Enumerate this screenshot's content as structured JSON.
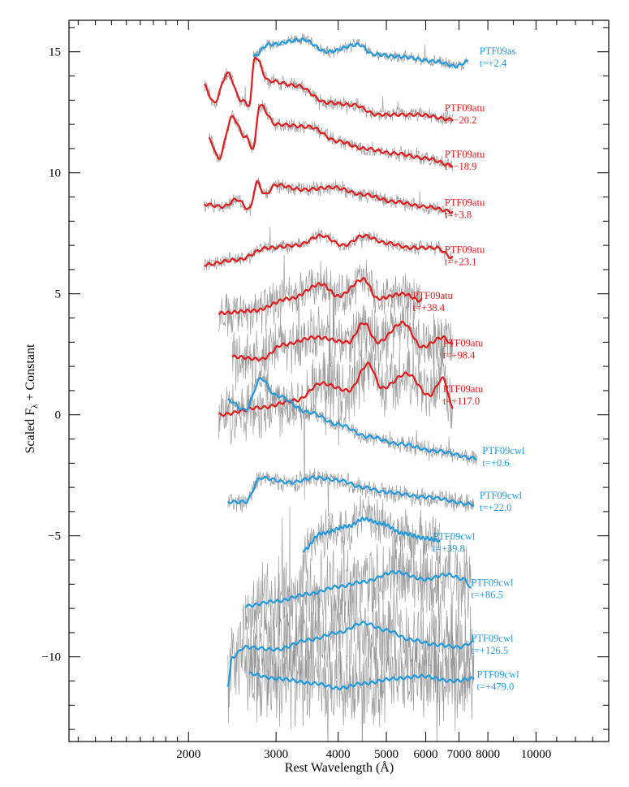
{
  "chart_data": {
    "type": "line",
    "title": "",
    "xlabel": "Rest Wavelength (Å)",
    "ylabel_main": "Scaled F",
    "ylabel_sub": "λ",
    "ylabel_tail": " + Constant",
    "xscale": "log",
    "xlim": [
      1150,
      14000
    ],
    "ylim": [
      -13.5,
      16.3
    ],
    "x_major_ticks": [
      2000,
      3000,
      4000,
      5000,
      6000,
      7000,
      8000,
      10000
    ],
    "x_tick_labels": [
      "2000",
      "3000",
      "4000",
      "5000",
      "6000",
      "7000",
      "8000",
      "10000"
    ],
    "y_major_ticks": [
      15,
      10,
      5,
      0,
      -5,
      -10
    ],
    "y_tick_labels": [
      "15",
      "10",
      "5",
      "0",
      "−5",
      "−10"
    ],
    "colors": {
      "red": "#e31a1c",
      "blue": "#1f9ae0",
      "noise": "#8c8c8c",
      "axis": "#000000"
    },
    "series": [
      {
        "name": "PTF09as",
        "epoch": "t=+2.4",
        "color": "blue",
        "x_range": [
          2700,
          7300
        ],
        "level": 14.9,
        "noise": 0.25,
        "keypoints": [
          [
            2700,
            14.8
          ],
          [
            2900,
            15.3
          ],
          [
            3400,
            15.5
          ],
          [
            3800,
            15.0
          ],
          [
            4400,
            15.3
          ],
          [
            4700,
            14.9
          ],
          [
            5300,
            14.8
          ],
          [
            6300,
            14.6
          ],
          [
            6900,
            14.4
          ],
          [
            7300,
            14.6
          ]
        ],
        "label_x": 7700,
        "label_y": 14.75
      },
      {
        "name": "PTF09atu",
        "epoch": "t=−20.2",
        "color": "red",
        "x_range": [
          2150,
          6800
        ],
        "level": 12.3,
        "noise": 0.3,
        "keypoints": [
          [
            2150,
            13.6
          ],
          [
            2250,
            12.9
          ],
          [
            2400,
            14.1
          ],
          [
            2550,
            13.0
          ],
          [
            2650,
            12.8
          ],
          [
            2720,
            14.8
          ],
          [
            2900,
            13.8
          ],
          [
            3300,
            13.6
          ],
          [
            3800,
            12.9
          ],
          [
            4300,
            12.8
          ],
          [
            4800,
            12.4
          ],
          [
            5800,
            12.4
          ],
          [
            6800,
            12.2
          ]
        ],
        "label_x": 6550,
        "label_y": 12.4
      },
      {
        "name": "PTF09atu",
        "epoch": "t=−18.9",
        "color": "red",
        "x_range": [
          2200,
          6800
        ],
        "level": 10.4,
        "noise": 0.3,
        "keypoints": [
          [
            2200,
            11.4
          ],
          [
            2300,
            10.6
          ],
          [
            2450,
            12.3
          ],
          [
            2600,
            11.5
          ],
          [
            2700,
            11.0
          ],
          [
            2780,
            12.8
          ],
          [
            3000,
            12.0
          ],
          [
            3500,
            11.9
          ],
          [
            4000,
            11.3
          ],
          [
            4500,
            11.0
          ],
          [
            5200,
            10.8
          ],
          [
            6000,
            10.6
          ],
          [
            6800,
            10.3
          ]
        ],
        "label_x": 6550,
        "label_y": 10.5
      },
      {
        "name": "PTF09atu",
        "epoch": "t=+3.8",
        "color": "red",
        "x_range": [
          2150,
          6800
        ],
        "level": 8.5,
        "noise": 0.3,
        "keypoints": [
          [
            2150,
            8.7
          ],
          [
            2350,
            8.6
          ],
          [
            2500,
            8.9
          ],
          [
            2650,
            8.5
          ],
          [
            2750,
            9.6
          ],
          [
            2850,
            9.1
          ],
          [
            3000,
            9.5
          ],
          [
            3400,
            9.3
          ],
          [
            3900,
            9.4
          ],
          [
            4500,
            9.1
          ],
          [
            5200,
            8.8
          ],
          [
            6000,
            8.6
          ],
          [
            6800,
            8.4
          ]
        ],
        "label_x": 6550,
        "label_y": 8.5
      },
      {
        "name": "PTF09atu",
        "epoch": "t=+23.1",
        "color": "red",
        "x_range": [
          2150,
          6800
        ],
        "level": 6.6,
        "noise": 0.3,
        "keypoints": [
          [
            2150,
            6.2
          ],
          [
            2500,
            6.4
          ],
          [
            2900,
            6.9
          ],
          [
            3300,
            7.0
          ],
          [
            3700,
            7.4
          ],
          [
            4100,
            7.0
          ],
          [
            4500,
            7.4
          ],
          [
            5000,
            7.1
          ],
          [
            5600,
            6.9
          ],
          [
            6300,
            6.9
          ],
          [
            6800,
            6.5
          ]
        ],
        "label_x": 6550,
        "label_y": 6.55
      },
      {
        "name": "PTF09atu",
        "epoch": "t=+38.4",
        "color": "red",
        "x_range": [
          2300,
          5900
        ],
        "level": 4.6,
        "noise": 0.9,
        "keypoints": [
          [
            2300,
            4.2
          ],
          [
            2700,
            4.3
          ],
          [
            3200,
            4.8
          ],
          [
            3700,
            5.4
          ],
          [
            4000,
            4.9
          ],
          [
            4500,
            5.6
          ],
          [
            4800,
            4.8
          ],
          [
            5400,
            5.0
          ],
          [
            5900,
            4.7
          ]
        ],
        "label_x": 5650,
        "label_y": 4.65
      },
      {
        "name": "PTF09atu",
        "epoch": "t=+98.4",
        "color": "red",
        "x_range": [
          2450,
          6800
        ],
        "level": 2.6,
        "noise": 1.2,
        "keypoints": [
          [
            2450,
            2.4
          ],
          [
            2800,
            2.3
          ],
          [
            3100,
            2.9
          ],
          [
            3600,
            3.2
          ],
          [
            4200,
            3.0
          ],
          [
            4500,
            3.8
          ],
          [
            4800,
            3.0
          ],
          [
            5400,
            3.8
          ],
          [
            5900,
            2.8
          ],
          [
            6500,
            3.2
          ],
          [
            6800,
            2.9
          ]
        ],
        "label_x": 6500,
        "label_y": 2.7
      },
      {
        "name": "PTF09atu",
        "epoch": "t=+117.0",
        "color": "red",
        "x_range": [
          2300,
          6800
        ],
        "level": 0.6,
        "noise": 1.3,
        "keypoints": [
          [
            2300,
            0.0
          ],
          [
            2800,
            0.3
          ],
          [
            3300,
            0.6
          ],
          [
            3700,
            1.3
          ],
          [
            4200,
            1.0
          ],
          [
            4600,
            2.1
          ],
          [
            4900,
            1.1
          ],
          [
            5500,
            1.7
          ],
          [
            6100,
            0.8
          ],
          [
            6500,
            1.5
          ],
          [
            6800,
            0.3
          ]
        ],
        "label_x": 6500,
        "label_y": 0.8
      },
      {
        "name": "PTF09cwl",
        "epoch": "t=+0.6",
        "color": "blue",
        "x_range": [
          2400,
          7600
        ],
        "level": -1.0,
        "noise": 0.35,
        "keypoints": [
          [
            2400,
            0.6
          ],
          [
            2600,
            0.2
          ],
          [
            2800,
            1.5
          ],
          [
            3000,
            0.8
          ],
          [
            3500,
            0.1
          ],
          [
            4000,
            -0.4
          ],
          [
            4600,
            -0.9
          ],
          [
            5300,
            -1.2
          ],
          [
            6300,
            -1.5
          ],
          [
            7600,
            -1.8
          ]
        ],
        "label_x": 7800,
        "label_y": -1.75
      },
      {
        "name": "PTF09cwl",
        "epoch": "t=+22.0",
        "color": "blue",
        "x_range": [
          2400,
          7500
        ],
        "level": -3.0,
        "noise": 0.4,
        "keypoints": [
          [
            2400,
            -3.6
          ],
          [
            2600,
            -3.6
          ],
          [
            2800,
            -2.6
          ],
          [
            3200,
            -2.8
          ],
          [
            3600,
            -2.6
          ],
          [
            4000,
            -2.7
          ],
          [
            4500,
            -3.0
          ],
          [
            5000,
            -3.2
          ],
          [
            6000,
            -3.4
          ],
          [
            7500,
            -3.7
          ]
        ],
        "label_x": 7700,
        "label_y": -3.6
      },
      {
        "name": "PTF09cwl",
        "epoch": "t=+39.8",
        "color": "blue",
        "x_range": [
          3400,
          6400
        ],
        "level": -4.9,
        "noise": 1.0,
        "keypoints": [
          [
            3400,
            -5.6
          ],
          [
            3700,
            -4.9
          ],
          [
            4200,
            -4.6
          ],
          [
            4500,
            -4.3
          ],
          [
            4900,
            -4.5
          ],
          [
            5400,
            -4.9
          ],
          [
            6000,
            -5.1
          ],
          [
            6400,
            -5.2
          ]
        ],
        "label_x": 6200,
        "label_y": -5.3
      },
      {
        "name": "PTF09cwl",
        "epoch": "t=+86.5",
        "color": "blue",
        "x_range": [
          2600,
          7400
        ],
        "level": -7.3,
        "noise": 1.6,
        "keypoints": [
          [
            2600,
            -7.9
          ],
          [
            3000,
            -7.7
          ],
          [
            3500,
            -7.4
          ],
          [
            4000,
            -7.1
          ],
          [
            4500,
            -6.9
          ],
          [
            5200,
            -6.5
          ],
          [
            6000,
            -6.8
          ],
          [
            6600,
            -6.6
          ],
          [
            7200,
            -6.8
          ],
          [
            7400,
            -7.2
          ]
        ],
        "label_x": 7400,
        "label_y": -7.2
      },
      {
        "name": "PTF09cwl",
        "epoch": "t=+126.5",
        "color": "blue",
        "x_range": [
          2400,
          7500
        ],
        "level": -9.5,
        "noise": 2.0,
        "keypoints": [
          [
            2400,
            -11.2
          ],
          [
            2450,
            -10.0
          ],
          [
            2600,
            -9.6
          ],
          [
            3000,
            -9.7
          ],
          [
            3500,
            -9.3
          ],
          [
            4000,
            -9.0
          ],
          [
            4500,
            -8.6
          ],
          [
            5000,
            -8.9
          ],
          [
            5600,
            -9.3
          ],
          [
            6300,
            -9.5
          ],
          [
            7000,
            -9.6
          ],
          [
            7500,
            -9.4
          ]
        ],
        "label_x": 7400,
        "label_y": -9.5
      },
      {
        "name": "PTF09cwl",
        "epoch": "t=+479.0",
        "color": "blue",
        "x_range": [
          2650,
          7500
        ],
        "level": -11.0,
        "noise": 1.8,
        "keypoints": [
          [
            2650,
            -10.7
          ],
          [
            3000,
            -10.9
          ],
          [
            3600,
            -11.1
          ],
          [
            4000,
            -11.3
          ],
          [
            4500,
            -11.1
          ],
          [
            5200,
            -10.9
          ],
          [
            5900,
            -10.8
          ],
          [
            6800,
            -11.0
          ],
          [
            7500,
            -10.9
          ]
        ],
        "label_x": 7600,
        "label_y": -11.0
      }
    ]
  }
}
